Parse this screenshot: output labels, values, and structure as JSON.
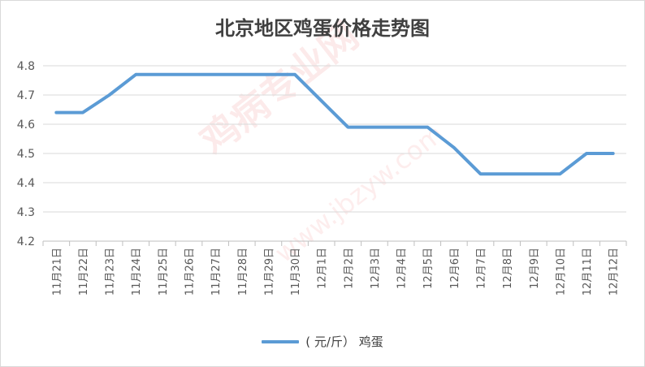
{
  "chart_data": {
    "type": "line",
    "title": "北京地区鸡蛋价格走势图",
    "categories": [
      "11月21日",
      "11月22日",
      "11月23日",
      "11月24日",
      "11月25日",
      "11月26日",
      "11月27日",
      "11月28日",
      "11月29日",
      "11月30日",
      "12月1日",
      "12月2日",
      "12月3日",
      "12月4日",
      "12月5日",
      "12月6日",
      "12月7日",
      "12月8日",
      "12月9日",
      "12月10日",
      "12月11日",
      "12月12日"
    ],
    "series": [
      {
        "name": "( 元/斤） 鸡蛋",
        "color": "#5b9bd5",
        "values": [
          4.64,
          4.64,
          4.7,
          4.77,
          4.77,
          4.77,
          4.77,
          4.77,
          4.77,
          4.77,
          4.68,
          4.59,
          4.59,
          4.59,
          4.59,
          4.52,
          4.43,
          4.43,
          4.43,
          4.43,
          4.5,
          4.5
        ]
      }
    ],
    "ylim": [
      4.2,
      4.8
    ],
    "yticks": [
      "4.2",
      "4.3",
      "4.4",
      "4.5",
      "4.6",
      "4.7",
      "4.8"
    ],
    "grid": true,
    "legend": "bottom",
    "xlabel": "",
    "ylabel": ""
  },
  "watermark": {
    "main": "鸡病专业网",
    "url": "www.jbzyw.com"
  },
  "colors": {
    "line": "#5b9bd5",
    "grid": "#d9d9d9",
    "text": "#595959",
    "watermark": "#e85050"
  }
}
